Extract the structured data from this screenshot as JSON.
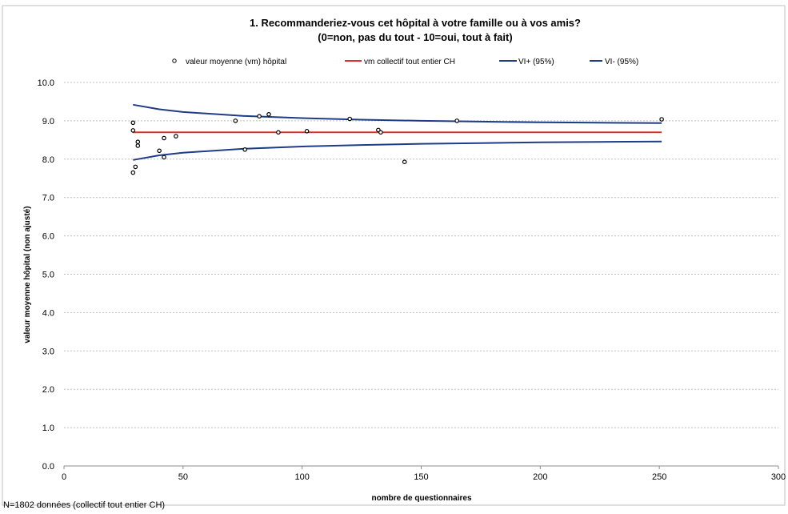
{
  "top_text": "",
  "footnote": "N=1802 données (collectif tout entier CH)",
  "chart_data": {
    "type": "scatter",
    "title": "1. Recommanderiez-vous cet hôpital à votre famille ou à vos amis?",
    "subtitle": "(0=non, pas du tout - 10=oui, tout à fait)",
    "xlabel": "nombre de questionnaires",
    "ylabel": "valeur moyenne hôpital (non ajusté)",
    "xlim": [
      0,
      300
    ],
    "ylim": [
      0,
      10
    ],
    "x_ticks": [
      0,
      50,
      100,
      150,
      200,
      250,
      300
    ],
    "y_ticks": [
      "0.0",
      "1.0",
      "2.0",
      "3.0",
      "4.0",
      "5.0",
      "6.0",
      "7.0",
      "8.0",
      "9.0",
      "10.0"
    ],
    "grid": true,
    "legend_position": "top",
    "colors": {
      "points": "#000000",
      "mean": "#e0302a",
      "ci": "#1f3c88",
      "grid": "#bfbfbf",
      "frame": "#bfbfbf"
    },
    "series": [
      {
        "name": "valeur moyenne (vm) hôpital",
        "kind": "points",
        "points": [
          [
            29,
            8.95
          ],
          [
            29,
            8.75
          ],
          [
            29,
            7.65
          ],
          [
            30,
            7.8
          ],
          [
            31,
            8.45
          ],
          [
            31,
            8.35
          ],
          [
            40,
            8.22
          ],
          [
            42,
            8.55
          ],
          [
            42,
            8.05
          ],
          [
            47,
            8.6
          ],
          [
            72,
            9.0
          ],
          [
            76,
            8.25
          ],
          [
            82,
            9.12
          ],
          [
            86,
            9.17
          ],
          [
            90,
            8.7
          ],
          [
            102,
            8.73
          ],
          [
            120,
            9.05
          ],
          [
            132,
            8.76
          ],
          [
            133,
            8.7
          ],
          [
            143,
            7.93
          ],
          [
            165,
            9.0
          ],
          [
            251,
            9.04
          ]
        ]
      },
      {
        "name": "vm collectif tout entier CH",
        "kind": "line",
        "points": [
          [
            29,
            8.7
          ],
          [
            251,
            8.7
          ]
        ]
      },
      {
        "name": "VI+ (95%)",
        "kind": "line",
        "points": [
          [
            29,
            9.42
          ],
          [
            40,
            9.3
          ],
          [
            50,
            9.23
          ],
          [
            75,
            9.13
          ],
          [
            100,
            9.07
          ],
          [
            125,
            9.03
          ],
          [
            150,
            9.0
          ],
          [
            175,
            8.98
          ],
          [
            200,
            8.96
          ],
          [
            225,
            8.95
          ],
          [
            251,
            8.94
          ]
        ]
      },
      {
        "name": "VI- (95%)",
        "kind": "line",
        "points": [
          [
            29,
            7.98
          ],
          [
            40,
            8.1
          ],
          [
            50,
            8.17
          ],
          [
            75,
            8.27
          ],
          [
            100,
            8.33
          ],
          [
            125,
            8.37
          ],
          [
            150,
            8.4
          ],
          [
            175,
            8.42
          ],
          [
            200,
            8.44
          ],
          [
            225,
            8.45
          ],
          [
            251,
            8.46
          ]
        ]
      }
    ]
  }
}
